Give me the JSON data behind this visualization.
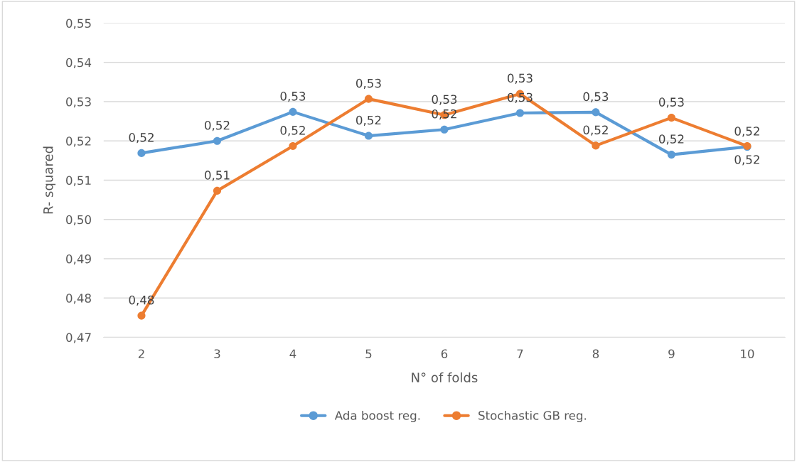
{
  "chart_data": {
    "type": "line",
    "xlabel": "N° of folds",
    "ylabel": "R- squared",
    "categories": [
      "2",
      "3",
      "4",
      "5",
      "6",
      "7",
      "8",
      "9",
      "10"
    ],
    "series": [
      {
        "name": "Ada boost reg.",
        "color": "#5b9bd5",
        "values": [
          0.5169,
          0.52,
          0.5274,
          0.5213,
          0.5229,
          0.5271,
          0.5273,
          0.5165,
          0.5185
        ],
        "value_labels": [
          "0,52",
          "0,52",
          "0,53",
          "0,52",
          "0,52",
          "0,53",
          "0,53",
          "0,52",
          "0,52"
        ]
      },
      {
        "name": "Stochastic GB reg.",
        "color": "#ed7d31",
        "values": [
          0.4755,
          0.5073,
          0.5187,
          0.5307,
          0.5266,
          0.532,
          0.5188,
          0.5259,
          0.5187
        ],
        "value_labels": [
          "0,48",
          "0,51",
          "0,52",
          "0,53",
          "0,53",
          "0,53",
          "0,52",
          "0,53",
          "0,52"
        ]
      }
    ],
    "ylim": [
      0.47,
      0.55
    ],
    "yticks": [
      {
        "value": 0.47,
        "label": "0,47"
      },
      {
        "value": 0.48,
        "label": "0,48"
      },
      {
        "value": 0.49,
        "label": "0,49"
      },
      {
        "value": 0.5,
        "label": "0,50"
      },
      {
        "value": 0.51,
        "label": "0,51"
      },
      {
        "value": 0.52,
        "label": "0,52"
      },
      {
        "value": 0.53,
        "label": "0,53"
      },
      {
        "value": 0.54,
        "label": "0,54"
      },
      {
        "value": 0.55,
        "label": "0,55"
      }
    ],
    "grid": "y",
    "legend": "bottom",
    "marker": "circle",
    "line_style": "solid"
  }
}
